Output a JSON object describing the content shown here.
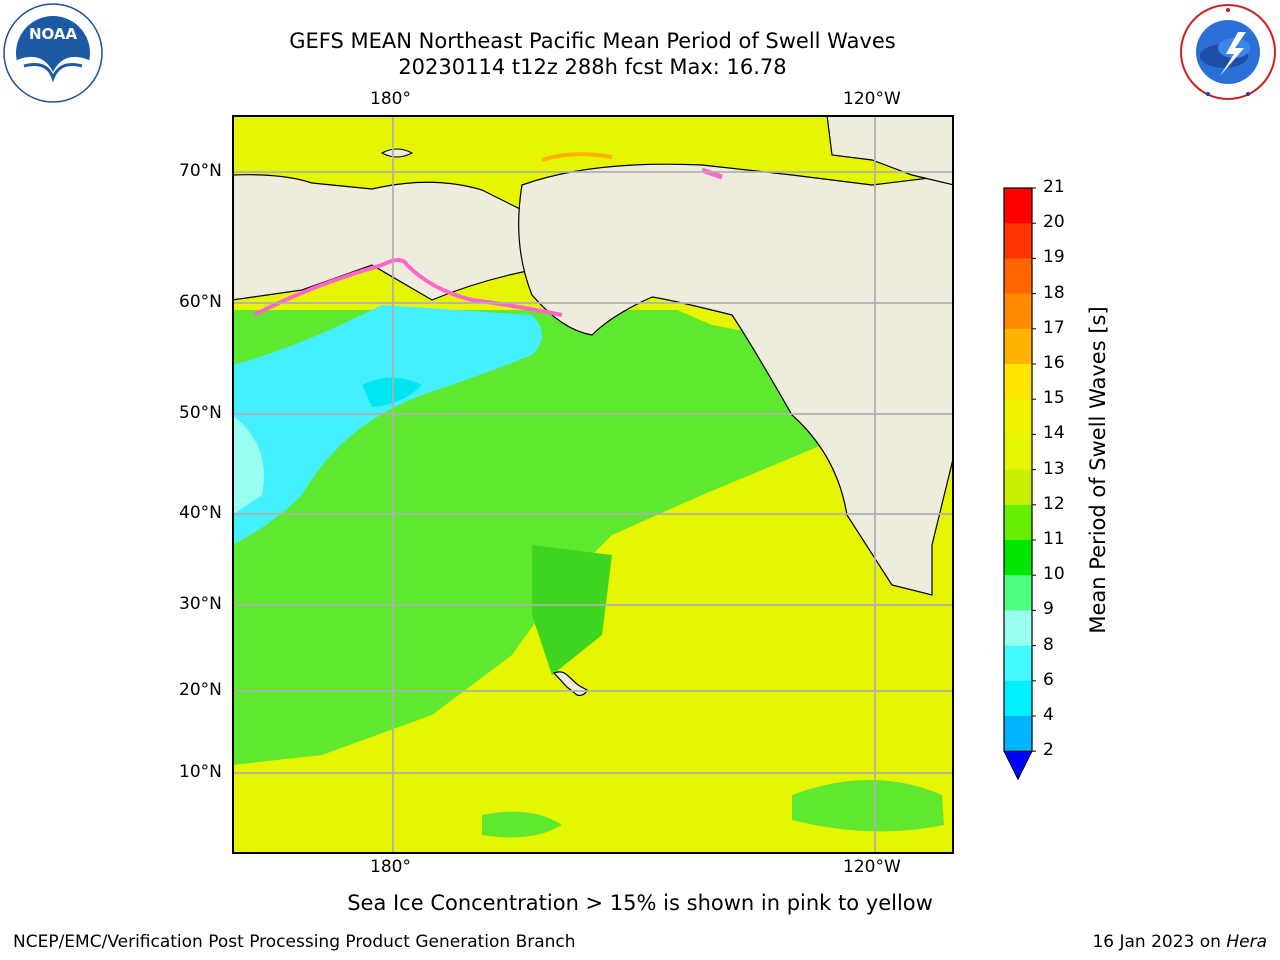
{
  "title_line1": "GEFS MEAN Northeast Pacific Mean Period of Swell Waves",
  "title_line2": "20230114 t12z 288h fcst   Max: 16.78",
  "logos": {
    "left": "NOAA",
    "right": "NATIONAL WEATHER SERVICE"
  },
  "axes": {
    "lon_top": [
      "180°",
      "120°W"
    ],
    "lon_bottom": [
      "180°",
      "120°W"
    ],
    "lat": [
      "70°N",
      "60°N",
      "50°N",
      "40°N",
      "30°N",
      "20°N",
      "10°N"
    ]
  },
  "colorbar": {
    "label": "Mean Period of Swell Waves [s]",
    "ticks": [
      "21",
      "20",
      "19",
      "18",
      "17",
      "16",
      "15",
      "14",
      "13",
      "12",
      "11",
      "10",
      "9",
      "8",
      "6",
      "4",
      "2"
    ],
    "colors": [
      "#ff0000",
      "#ff3300",
      "#ff6600",
      "#ff8c00",
      "#ffb300",
      "#ffe600",
      "#f2f200",
      "#e6f500",
      "#c8f000",
      "#64f000",
      "#00e600",
      "#4cff80",
      "#99ffee",
      "#44f8ff",
      "#00f0ff",
      "#00b4ff",
      "#0066ff"
    ],
    "extend_color": "#0000ff"
  },
  "map_colors": {
    "land": "#eeecdc",
    "ocean_green": "#5fe830",
    "ocean_yellow": "#e6f500",
    "ocean_cyan": "#44f0ff",
    "ice": "#ff66cc"
  },
  "footer_note": "Sea Ice Concentration > 15% is shown in pink to yellow",
  "footer_left": "NCEP/EMC/Verification Post Processing Product Generation Branch",
  "footer_right_date": "16 Jan 2023 on",
  "footer_right_host": "Hera"
}
